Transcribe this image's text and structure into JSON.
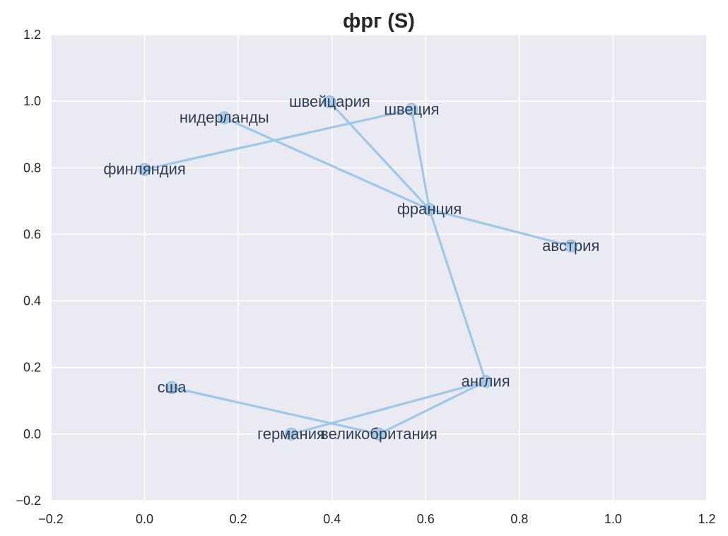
{
  "chart_data": {
    "type": "scatter",
    "title": "фрг (S)",
    "xlabel": "",
    "ylabel": "",
    "xlim": [
      -0.2,
      1.2
    ],
    "ylim": [
      -0.2,
      1.2
    ],
    "xticks": [
      -0.2,
      0.0,
      0.2,
      0.4,
      0.6,
      0.8,
      1.0,
      1.2
    ],
    "yticks": [
      -0.2,
      0.0,
      0.2,
      0.4,
      0.6,
      0.8,
      1.0,
      1.2
    ],
    "xtick_labels": [
      "−0.2",
      "0.0",
      "0.2",
      "0.4",
      "0.6",
      "0.8",
      "1.0",
      "1.2"
    ],
    "ytick_labels": [
      "−0.2",
      "0.0",
      "0.2",
      "0.4",
      "0.6",
      "0.8",
      "1.0",
      "1.2"
    ],
    "grid": true,
    "colors": {
      "background": "#eaeaf2",
      "grid": "#ffffff",
      "marker": "#a3c8e6",
      "marker_edge": "#88b5da",
      "edge": "#9ec8e8",
      "label": "#2f3e55"
    },
    "points": [
      {
        "label": "финляндия",
        "x": 0.0,
        "y": 0.795
      },
      {
        "label": "нидерланды",
        "x": 0.17,
        "y": 0.95
      },
      {
        "label": "швейцария",
        "x": 0.395,
        "y": 0.998
      },
      {
        "label": "швеция",
        "x": 0.57,
        "y": 0.975
      },
      {
        "label": "франция",
        "x": 0.608,
        "y": 0.675
      },
      {
        "label": "австрия",
        "x": 0.91,
        "y": 0.565
      },
      {
        "label": "англия",
        "x": 0.728,
        "y": 0.158
      },
      {
        "label": "сша",
        "x": 0.058,
        "y": 0.14
      },
      {
        "label": "германия",
        "x": 0.313,
        "y": 0.0
      },
      {
        "label": "великобритания",
        "x": 0.5,
        "y": 0.0
      }
    ],
    "edges": [
      [
        "финляндия",
        "швеция"
      ],
      [
        "швеция",
        "франция"
      ],
      [
        "нидерланды",
        "франция"
      ],
      [
        "швейцария",
        "франция"
      ],
      [
        "франция",
        "австрия"
      ],
      [
        "франция",
        "англия"
      ],
      [
        "англия",
        "германия"
      ],
      [
        "англия",
        "великобритания"
      ],
      [
        "сша",
        "великобритания"
      ]
    ]
  }
}
